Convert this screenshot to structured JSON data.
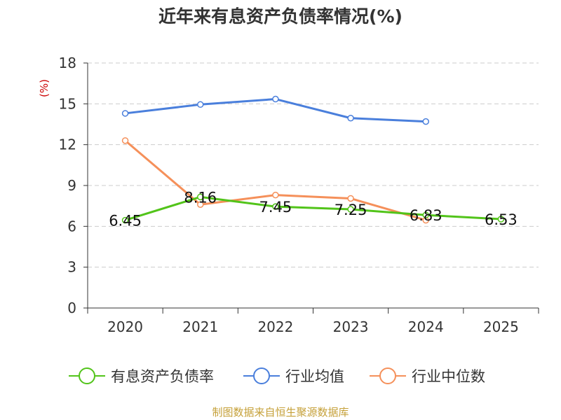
{
  "page": {
    "title": "近年来有息资产负债率情况(%)",
    "source": "制图数据来自恒生聚源数据库"
  },
  "colors": {
    "series_1": "#52c41a",
    "series_2": "#4a7fdc",
    "series_3": "#f5905a",
    "ylabel": "#cc0000",
    "grid": "#cccccc",
    "footer": "#c5a038"
  },
  "chart_data": {
    "type": "line",
    "title": "近年来有息资产负债率情况(%)",
    "xlabel": "",
    "ylabel": "(%)",
    "categories": [
      "2020",
      "2021",
      "2022",
      "2023",
      "2024",
      "2025"
    ],
    "ylim": [
      0,
      18
    ],
    "yticks": [
      "0",
      "3",
      "6",
      "9",
      "12",
      "15",
      "18"
    ],
    "grid": "horizontal dashed",
    "legend_position": "bottom",
    "series": [
      {
        "name": "有息资产负债率",
        "values": [
          6.45,
          8.16,
          7.45,
          7.25,
          6.83,
          6.53
        ],
        "labels": [
          "6.45",
          "8.16",
          "7.45",
          "7.25",
          "6.83",
          "6.53"
        ],
        "show_labels": true
      },
      {
        "name": "行业均值",
        "values": [
          14.3,
          14.95,
          15.35,
          13.95,
          13.7,
          null
        ],
        "show_labels": false
      },
      {
        "name": "行业中位数",
        "values": [
          12.3,
          7.6,
          8.3,
          8.05,
          6.45,
          null
        ],
        "show_labels": false
      }
    ]
  }
}
